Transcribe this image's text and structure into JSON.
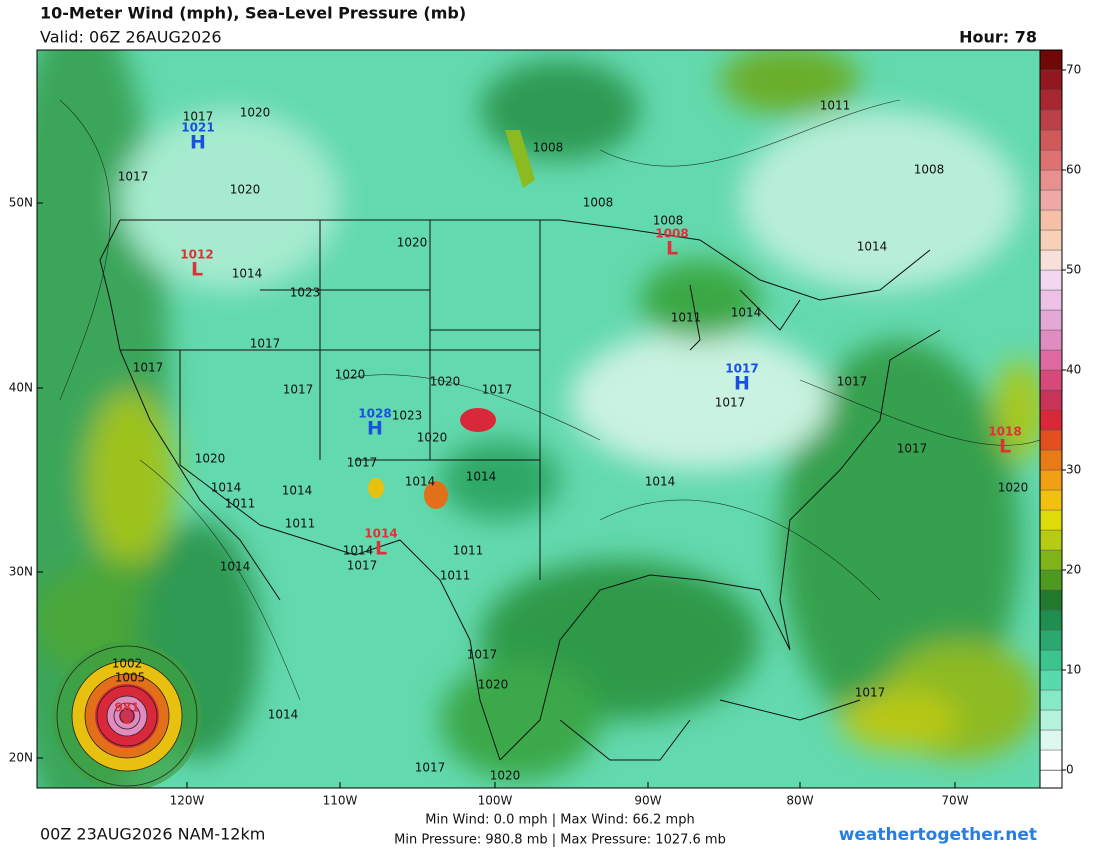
{
  "header": {
    "title": "10-Meter Wind (mph), Sea-Level Pressure (mb)",
    "valid": "Valid: 06Z 26AUG2026",
    "hour": "Hour: 78"
  },
  "map": {
    "lat_labels": [
      "50N",
      "40N",
      "30N",
      "20N"
    ],
    "lon_labels": [
      "120W",
      "110W",
      "100W",
      "90W",
      "80W",
      "70W"
    ],
    "centers": [
      {
        "letter": "H",
        "value": "1021"
      },
      {
        "letter": "L",
        "value": "1012"
      },
      {
        "letter": "L",
        "value": "1008"
      },
      {
        "letter": "H",
        "value": "1017"
      },
      {
        "letter": "H",
        "value": "1028"
      },
      {
        "letter": "L",
        "value": "1014"
      },
      {
        "letter": "L",
        "value": "1018"
      },
      {
        "letter": "L",
        "value": "981"
      }
    ],
    "isobar_labels": [
      "1017",
      "1020",
      "1017",
      "1020",
      "1014",
      "1023",
      "1017",
      "1017",
      "1017",
      "1020",
      "1020",
      "1014",
      "1011",
      "1011",
      "1014",
      "1014",
      "1011",
      "1011",
      "1008",
      "1008",
      "1008",
      "1014",
      "1011",
      "1014",
      "1020",
      "1017",
      "1020",
      "1017",
      "1023",
      "1020",
      "1014",
      "1017",
      "1014",
      "1014",
      "1017",
      "1014",
      "1017",
      "1017",
      "1020",
      "1017",
      "1020",
      "1014",
      "1017",
      "1017",
      "1020",
      "1011",
      "1008",
      "1002",
      "1005"
    ]
  },
  "colorbar": {
    "ticks": [
      0,
      10,
      20,
      30,
      40,
      50,
      60,
      70
    ],
    "range": [
      0,
      72
    ],
    "colors": [
      "#ffffff",
      "#ddf8ee",
      "#b4f2dc",
      "#86e8c4",
      "#5ad9ab",
      "#3cc48f",
      "#2aa86f",
      "#1e8f4e",
      "#237a2e",
      "#4e9a1e",
      "#7fb51a",
      "#b6cc12",
      "#e0dc0a",
      "#f2c10f",
      "#f0a012",
      "#e87a18",
      "#e2501e",
      "#d8283a",
      "#c8335a",
      "#d54a7a",
      "#df6aa0",
      "#e08cc0",
      "#e4a8d6",
      "#ebc2e6",
      "#f2d8ef",
      "#f8e0da",
      "#f8d0b8",
      "#f6c0a8",
      "#eea8a8",
      "#e89090",
      "#de7272",
      "#d05a5a",
      "#bc4048",
      "#a82832",
      "#921820",
      "#700808"
    ]
  },
  "footer": {
    "run": "00Z 23AUG2026 NAM-12km",
    "wind_stats": "Min Wind:  0.0 mph | Max Wind:  66.2 mph",
    "pressure_stats": "Min Pressure: 980.8 mb | Max Pressure: 1027.6 mb",
    "site": "weathertogether.net"
  }
}
